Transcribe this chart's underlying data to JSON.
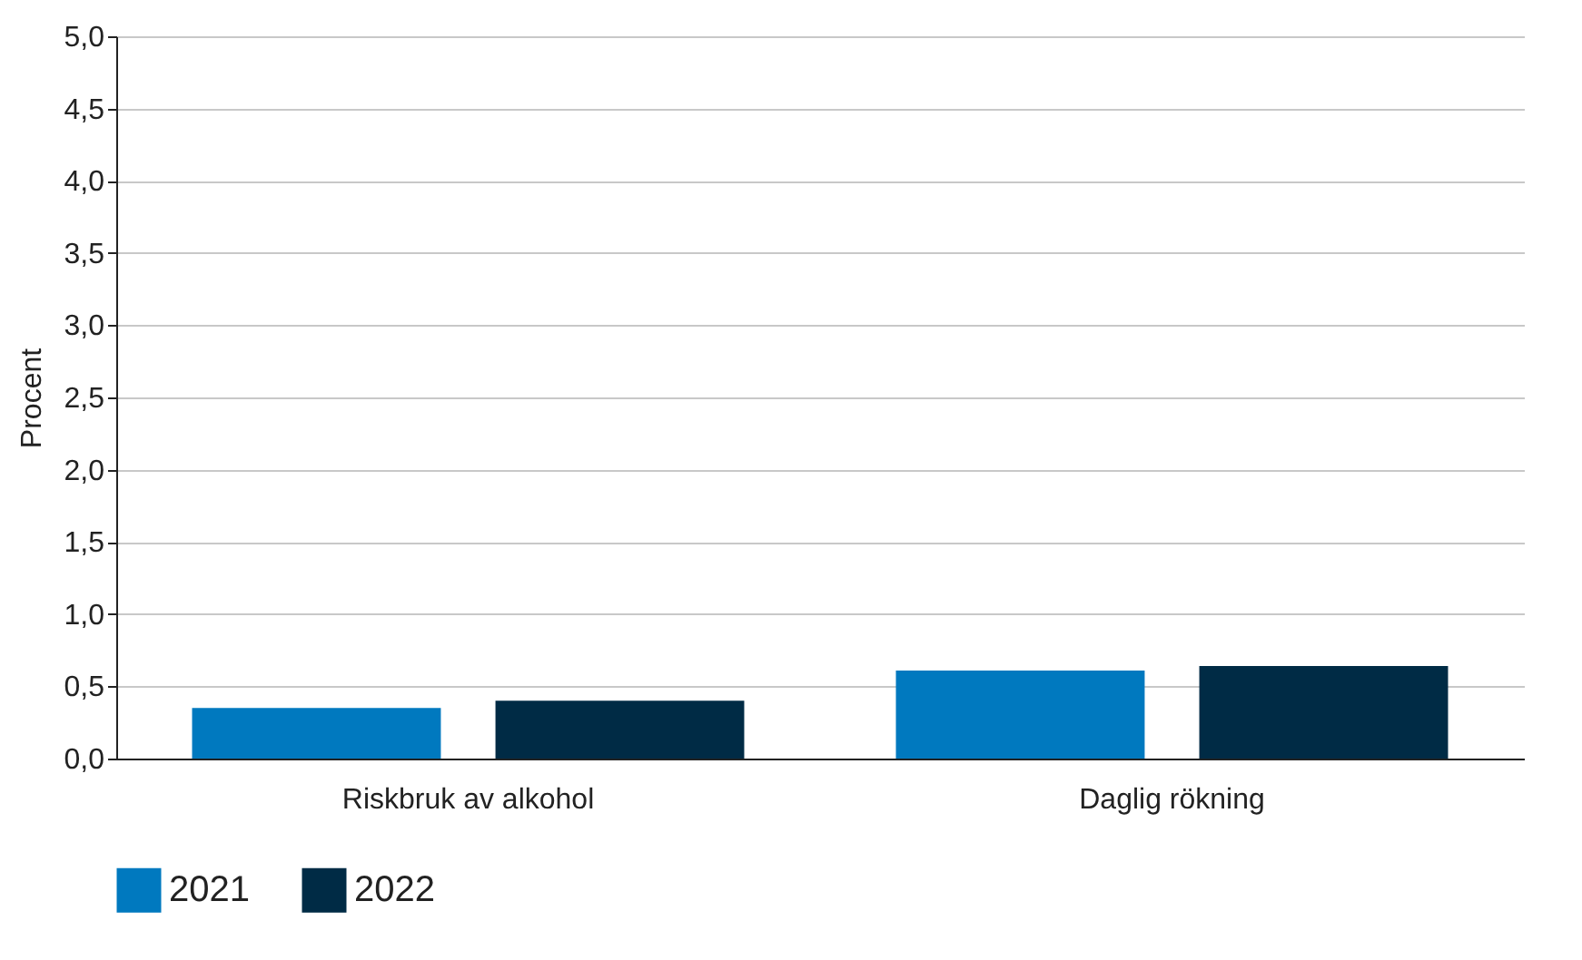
{
  "chart_data": {
    "type": "bar",
    "ylabel": "Procent",
    "categories": [
      "Riskbruk av alkohol",
      "Daglig rökning"
    ],
    "series": [
      {
        "name": "2021",
        "color": "#0079bf",
        "values": [
          0.35,
          0.61
        ]
      },
      {
        "name": "2022",
        "color": "#002b45",
        "values": [
          0.4,
          0.64
        ]
      }
    ],
    "ylim": [
      0,
      5
    ],
    "yticks": [
      {
        "value": 0,
        "label": "0,0"
      },
      {
        "value": 0.5,
        "label": "0,5"
      },
      {
        "value": 1,
        "label": "1,0"
      },
      {
        "value": 1.5,
        "label": "1,5"
      },
      {
        "value": 2,
        "label": "2,0"
      },
      {
        "value": 2.5,
        "label": "2,5"
      },
      {
        "value": 3,
        "label": "3,0"
      },
      {
        "value": 3.5,
        "label": "3,5"
      },
      {
        "value": 4,
        "label": "4,0"
      },
      {
        "value": 4.5,
        "label": "4,5"
      },
      {
        "value": 5,
        "label": "5,0"
      }
    ],
    "grid": "y",
    "legend": "bottom"
  }
}
